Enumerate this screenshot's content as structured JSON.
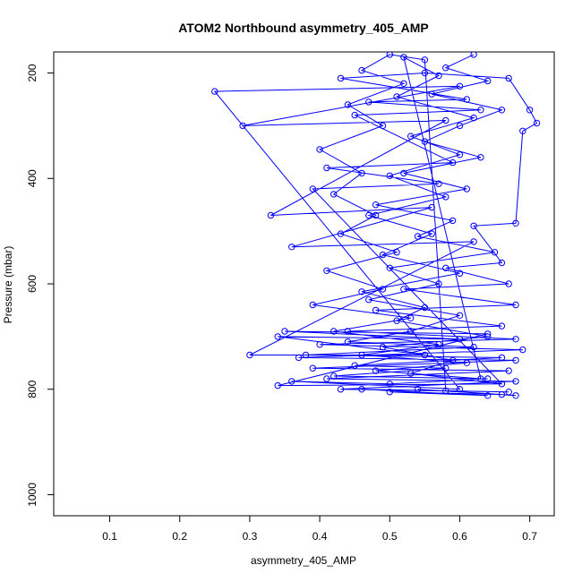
{
  "chart_data": {
    "type": "line",
    "title": "ATOM2 Northbound asymmetry_405_AMP",
    "xlabel": "asymmetry_405_AMP",
    "ylabel": "Pressure (mbar)",
    "xlim": [
      0.02,
      0.735
    ],
    "ylim": [
      1040,
      160
    ],
    "y_reversed": true,
    "x_ticks": [
      "0.1",
      "0.2",
      "0.3",
      "0.4",
      "0.5",
      "0.6",
      "0.7"
    ],
    "y_ticks": [
      "200",
      "400",
      "600",
      "800",
      "1000"
    ],
    "grid": false,
    "legend": "none",
    "series": [
      {
        "color": "#0000ff",
        "marker": "open-circle",
        "points": [
          [
            0.62,
            165
          ],
          [
            0.58,
            190
          ],
          [
            0.64,
            215
          ],
          [
            0.56,
            240
          ],
          [
            0.66,
            270
          ],
          [
            0.6,
            300
          ],
          [
            0.55,
            330
          ],
          [
            0.63,
            360
          ],
          [
            0.52,
            390
          ],
          [
            0.61,
            420
          ],
          [
            0.48,
            450
          ],
          [
            0.59,
            480
          ],
          [
            0.54,
            510
          ],
          [
            0.65,
            540
          ],
          [
            0.5,
            570
          ],
          [
            0.57,
            600
          ],
          [
            0.47,
            630
          ],
          [
            0.6,
            660
          ],
          [
            0.53,
            690
          ],
          [
            0.44,
            710
          ],
          [
            0.62,
            720
          ],
          [
            0.38,
            735
          ],
          [
            0.66,
            740
          ],
          [
            0.45,
            755
          ],
          [
            0.58,
            760
          ],
          [
            0.42,
            775
          ],
          [
            0.64,
            780
          ],
          [
            0.5,
            790
          ],
          [
            0.36,
            785
          ],
          [
            0.6,
            800
          ],
          [
            0.25,
            235
          ],
          [
            0.6,
            225
          ],
          [
            0.29,
            300
          ],
          [
            0.58,
            290
          ],
          [
            0.33,
            470
          ],
          [
            0.56,
            455
          ],
          [
            0.36,
            530
          ],
          [
            0.62,
            520
          ],
          [
            0.3,
            735
          ],
          [
            0.55,
            735
          ],
          [
            0.34,
            700
          ],
          [
            0.6,
            705
          ],
          [
            0.35,
            690
          ],
          [
            0.64,
            695
          ],
          [
            0.34,
            793
          ],
          [
            0.66,
            790
          ],
          [
            0.39,
            420
          ],
          [
            0.57,
            410
          ],
          [
            0.41,
            380
          ],
          [
            0.59,
            370
          ],
          [
            0.45,
            280
          ],
          [
            0.63,
            270
          ],
          [
            0.47,
            255
          ],
          [
            0.61,
            250
          ],
          [
            0.43,
            210
          ],
          [
            0.55,
            200
          ],
          [
            0.67,
            210
          ],
          [
            0.7,
            270
          ],
          [
            0.71,
            295
          ],
          [
            0.69,
            310
          ],
          [
            0.68,
            485
          ],
          [
            0.62,
            490
          ],
          [
            0.66,
            560
          ],
          [
            0.58,
            570
          ],
          [
            0.67,
            600
          ],
          [
            0.52,
            610
          ],
          [
            0.68,
            640
          ],
          [
            0.48,
            650
          ],
          [
            0.66,
            680
          ],
          [
            0.44,
            690
          ],
          [
            0.68,
            705
          ],
          [
            0.4,
            715
          ],
          [
            0.69,
            725
          ],
          [
            0.37,
            740
          ],
          [
            0.68,
            745
          ],
          [
            0.39,
            760
          ],
          [
            0.67,
            765
          ],
          [
            0.41,
            780
          ],
          [
            0.68,
            785
          ],
          [
            0.43,
            800
          ],
          [
            0.67,
            805
          ],
          [
            0.46,
            800
          ],
          [
            0.64,
            812
          ],
          [
            0.5,
            805
          ],
          [
            0.66,
            810
          ],
          [
            0.54,
            800
          ],
          [
            0.68,
            812
          ],
          [
            0.58,
            803
          ],
          [
            0.55,
            175
          ],
          [
            0.5,
            165
          ],
          [
            0.46,
            195
          ],
          [
            0.52,
            220
          ],
          [
            0.44,
            260
          ],
          [
            0.49,
            300
          ],
          [
            0.4,
            345
          ],
          [
            0.46,
            390
          ],
          [
            0.42,
            430
          ],
          [
            0.48,
            470
          ],
          [
            0.43,
            505
          ],
          [
            0.51,
            540
          ],
          [
            0.41,
            575
          ],
          [
            0.49,
            610
          ],
          [
            0.39,
            640
          ],
          [
            0.53,
            665
          ],
          [
            0.42,
            690
          ],
          [
            0.57,
            715
          ],
          [
            0.46,
            735
          ],
          [
            0.61,
            750
          ],
          [
            0.48,
            765
          ],
          [
            0.63,
            780
          ],
          [
            0.52,
            170
          ],
          [
            0.57,
            205
          ],
          [
            0.51,
            245
          ],
          [
            0.62,
            285
          ],
          [
            0.53,
            320
          ],
          [
            0.6,
            355
          ],
          [
            0.5,
            395
          ],
          [
            0.58,
            435
          ],
          [
            0.47,
            470
          ],
          [
            0.56,
            505
          ],
          [
            0.49,
            545
          ],
          [
            0.6,
            580
          ],
          [
            0.46,
            615
          ],
          [
            0.55,
            645
          ],
          [
            0.51,
            670
          ],
          [
            0.64,
            700
          ],
          [
            0.49,
            720
          ],
          [
            0.59,
            745
          ],
          [
            0.53,
            770
          ],
          [
            0.66,
            790
          ]
        ]
      }
    ]
  }
}
